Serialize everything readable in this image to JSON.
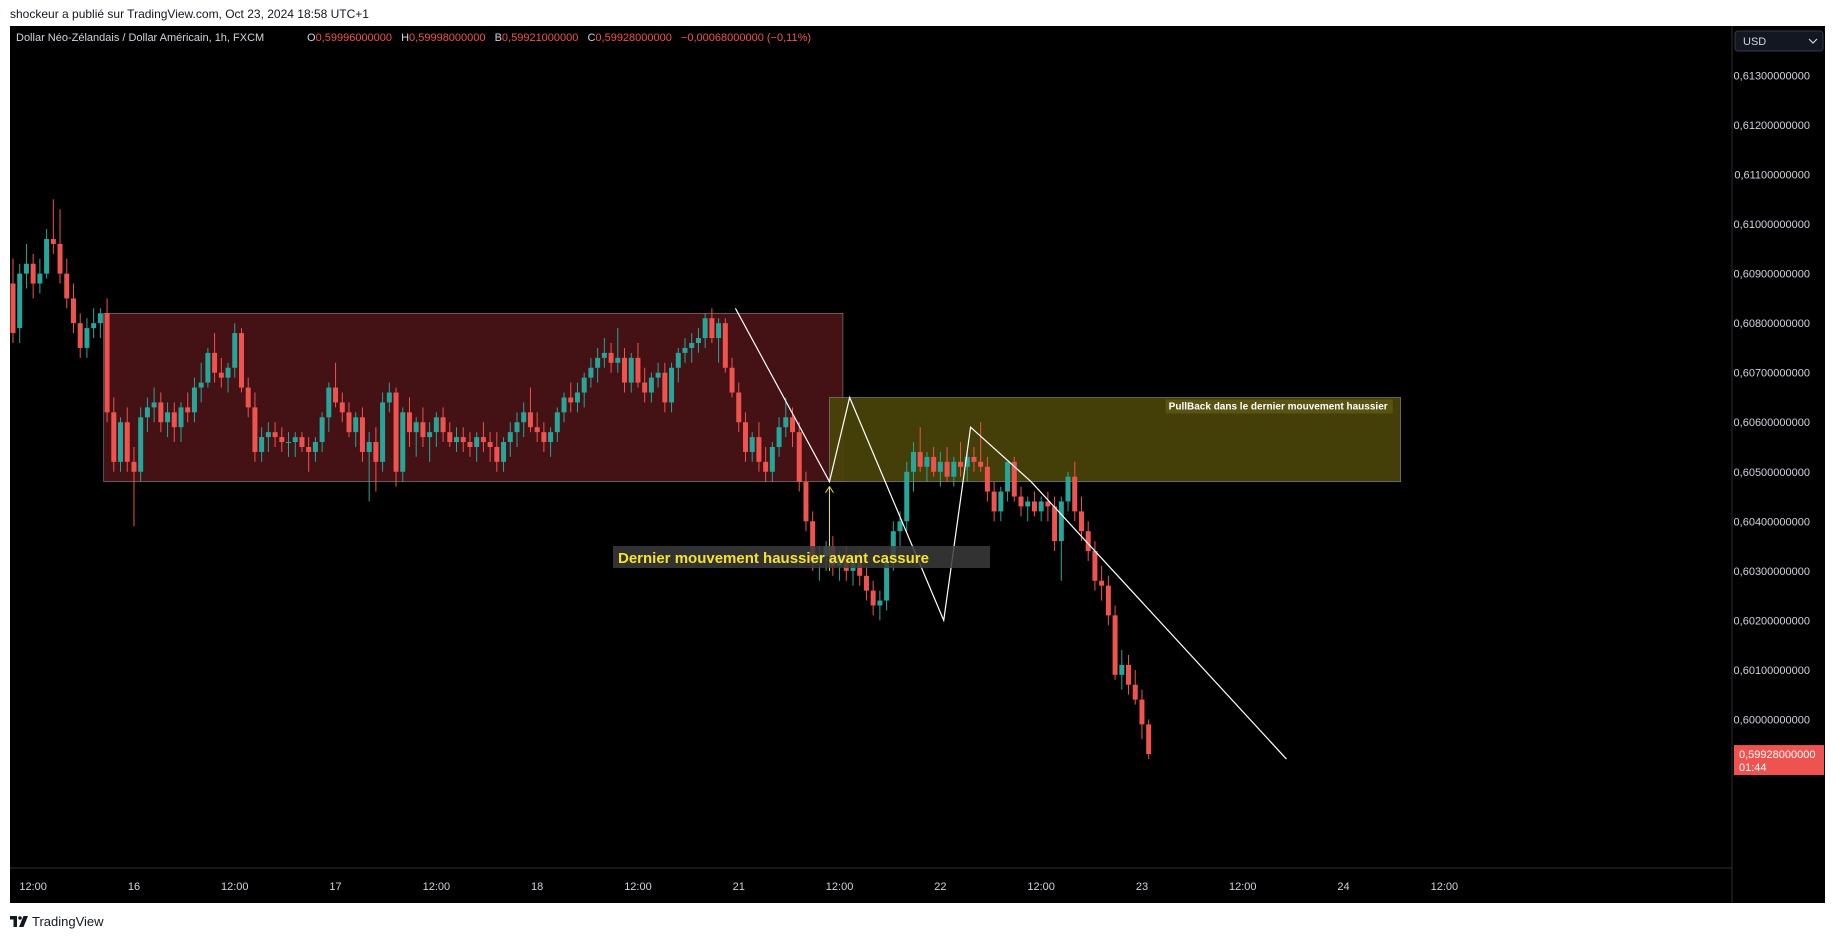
{
  "publish_line": "shockeur a publié sur TradingView.com, Oct 23, 2024 18:58 UTC+1",
  "brand": {
    "name": "TradingView",
    "icon": "tradingview-logo-icon"
  },
  "header": {
    "symbol": "Dollar Néo-Zélandais / Dollar Américain, 1h, FXCM",
    "o_label": "O",
    "o_value": "0,59996000000",
    "h_label": "H",
    "h_value": "0,59998000000",
    "b_label": "B",
    "b_value": "0,59921000000",
    "c_label": "C",
    "c_value": "0,59928000000",
    "change": "−0,00068000000 (−0,11%)"
  },
  "currency_button": "USD",
  "last_price": {
    "value": "0,59928000000",
    "countdown": "01:44",
    "price": 0.59928
  },
  "colors": {
    "up": "#26a69a",
    "down": "#ef5350",
    "range_box": "#4a1216",
    "pullback_box": "#4a4409",
    "annotation_text": "#f5e32e",
    "drawing": "#ffffff",
    "arrow": "#f5e32e"
  },
  "chart_data": {
    "type": "candlestick",
    "title": "Dollar Néo-Zélandais / Dollar Américain, 1h, FXCM",
    "y_range": [
      0.597,
      0.614
    ],
    "y_ticks": [
      {
        "v": 0.613,
        "label": "0,61300000000"
      },
      {
        "v": 0.612,
        "label": "0,61200000000"
      },
      {
        "v": 0.611,
        "label": "0,61100000000"
      },
      {
        "v": 0.61,
        "label": "0,61000000000"
      },
      {
        "v": 0.609,
        "label": "0,60900000000"
      },
      {
        "v": 0.608,
        "label": "0,60800000000"
      },
      {
        "v": 0.607,
        "label": "0,60700000000"
      },
      {
        "v": 0.606,
        "label": "0,60600000000"
      },
      {
        "v": 0.605,
        "label": "0,60500000000"
      },
      {
        "v": 0.604,
        "label": "0,60400000000"
      },
      {
        "v": 0.603,
        "label": "0,60300000000"
      },
      {
        "v": 0.602,
        "label": "0,60200000000"
      },
      {
        "v": 0.601,
        "label": "0,60100000000"
      },
      {
        "v": 0.6,
        "label": "0,60000000000"
      }
    ],
    "x_ticks": [
      {
        "i": 3,
        "label": "12:00"
      },
      {
        "i": 18,
        "label": "16"
      },
      {
        "i": 33,
        "label": "12:00"
      },
      {
        "i": 48,
        "label": "17"
      },
      {
        "i": 63,
        "label": "12:00"
      },
      {
        "i": 78,
        "label": "18"
      },
      {
        "i": 93,
        "label": "12:00"
      },
      {
        "i": 108,
        "label": "21"
      },
      {
        "i": 123,
        "label": "12:00"
      },
      {
        "i": 138,
        "label": "22"
      },
      {
        "i": 153,
        "label": "12:00"
      },
      {
        "i": 168,
        "label": "23"
      },
      {
        "i": 183,
        "label": "12:00"
      },
      {
        "i": 198,
        "label": "24"
      },
      {
        "i": 213,
        "label": "12:00"
      }
    ],
    "x_count": 216,
    "candles": [
      [
        0.6088,
        0.6093,
        0.6076,
        0.6078
      ],
      [
        0.6079,
        0.6092,
        0.6076,
        0.609
      ],
      [
        0.609,
        0.6096,
        0.6087,
        0.6092
      ],
      [
        0.6092,
        0.6094,
        0.6085,
        0.6088
      ],
      [
        0.6088,
        0.6093,
        0.6086,
        0.609
      ],
      [
        0.609,
        0.6099,
        0.6089,
        0.6097
      ],
      [
        0.6097,
        0.6105,
        0.6094,
        0.6096
      ],
      [
        0.6096,
        0.6103,
        0.6088,
        0.609
      ],
      [
        0.609,
        0.6093,
        0.6083,
        0.6085
      ],
      [
        0.6085,
        0.6088,
        0.6078,
        0.608
      ],
      [
        0.608,
        0.6082,
        0.6073,
        0.6075
      ],
      [
        0.6075,
        0.6081,
        0.6073,
        0.6079
      ],
      [
        0.6079,
        0.6083,
        0.6077,
        0.608
      ],
      [
        0.608,
        0.6083,
        0.6077,
        0.6082
      ],
      [
        0.6082,
        0.6085,
        0.606,
        0.6062
      ],
      [
        0.6062,
        0.6065,
        0.605,
        0.6052
      ],
      [
        0.6052,
        0.6061,
        0.605,
        0.606
      ],
      [
        0.606,
        0.6063,
        0.605,
        0.6052
      ],
      [
        0.6052,
        0.6055,
        0.6039,
        0.605
      ],
      [
        0.605,
        0.6063,
        0.6048,
        0.6061
      ],
      [
        0.6061,
        0.6065,
        0.6058,
        0.6063
      ],
      [
        0.6063,
        0.6067,
        0.606,
        0.6064
      ],
      [
        0.6064,
        0.6066,
        0.6058,
        0.606
      ],
      [
        0.606,
        0.6064,
        0.6057,
        0.6062
      ],
      [
        0.6062,
        0.6064,
        0.6056,
        0.6059
      ],
      [
        0.6059,
        0.6064,
        0.6056,
        0.6063
      ],
      [
        0.6063,
        0.6066,
        0.606,
        0.6062
      ],
      [
        0.6062,
        0.6069,
        0.606,
        0.6067
      ],
      [
        0.6067,
        0.6072,
        0.6064,
        0.6068
      ],
      [
        0.6068,
        0.6075,
        0.6067,
        0.6074
      ],
      [
        0.6074,
        0.6078,
        0.6068,
        0.607
      ],
      [
        0.607,
        0.6073,
        0.6067,
        0.6069
      ],
      [
        0.6069,
        0.6072,
        0.6066,
        0.6071
      ],
      [
        0.6071,
        0.608,
        0.6069,
        0.6078
      ],
      [
        0.6078,
        0.6079,
        0.6066,
        0.6067
      ],
      [
        0.6067,
        0.6069,
        0.6061,
        0.6063
      ],
      [
        0.6063,
        0.6066,
        0.6052,
        0.6054
      ],
      [
        0.6054,
        0.6059,
        0.6052,
        0.6057
      ],
      [
        0.6057,
        0.606,
        0.6054,
        0.6058
      ],
      [
        0.6058,
        0.606,
        0.6055,
        0.6057
      ],
      [
        0.6057,
        0.6059,
        0.6054,
        0.6056
      ],
      [
        0.6056,
        0.6058,
        0.6053,
        0.6056
      ],
      [
        0.6056,
        0.6058,
        0.6053,
        0.6057
      ],
      [
        0.6057,
        0.6058,
        0.6054,
        0.6055
      ],
      [
        0.6055,
        0.6057,
        0.605,
        0.6054
      ],
      [
        0.6054,
        0.6057,
        0.6052,
        0.6056
      ],
      [
        0.6056,
        0.6062,
        0.6054,
        0.6061
      ],
      [
        0.6061,
        0.6068,
        0.6058,
        0.6067
      ],
      [
        0.6067,
        0.6072,
        0.6063,
        0.6064
      ],
      [
        0.6064,
        0.6066,
        0.606,
        0.6062
      ],
      [
        0.6062,
        0.6064,
        0.6057,
        0.6058
      ],
      [
        0.6058,
        0.6062,
        0.6055,
        0.6061
      ],
      [
        0.6061,
        0.6063,
        0.6052,
        0.6054
      ],
      [
        0.6054,
        0.6058,
        0.6044,
        0.6056
      ],
      [
        0.6056,
        0.6059,
        0.6046,
        0.6052
      ],
      [
        0.6052,
        0.6066,
        0.605,
        0.6064
      ],
      [
        0.6064,
        0.6068,
        0.6062,
        0.6066
      ],
      [
        0.6066,
        0.6067,
        0.6047,
        0.605
      ],
      [
        0.605,
        0.6063,
        0.6048,
        0.6062
      ],
      [
        0.6062,
        0.6065,
        0.6055,
        0.6058
      ],
      [
        0.6058,
        0.6061,
        0.6053,
        0.606
      ],
      [
        0.606,
        0.6063,
        0.6055,
        0.6057
      ],
      [
        0.6057,
        0.606,
        0.6052,
        0.6058
      ],
      [
        0.6058,
        0.6062,
        0.6055,
        0.6061
      ],
      [
        0.6061,
        0.6063,
        0.6056,
        0.6058
      ],
      [
        0.6058,
        0.606,
        0.6055,
        0.6056
      ],
      [
        0.6056,
        0.6059,
        0.6054,
        0.6057
      ],
      [
        0.6057,
        0.6059,
        0.6054,
        0.6056
      ],
      [
        0.6056,
        0.6058,
        0.6053,
        0.6055
      ],
      [
        0.6055,
        0.6058,
        0.6052,
        0.6057
      ],
      [
        0.6057,
        0.606,
        0.6054,
        0.6056
      ],
      [
        0.6056,
        0.6058,
        0.6052,
        0.6055
      ],
      [
        0.6055,
        0.6058,
        0.605,
        0.6052
      ],
      [
        0.6052,
        0.6057,
        0.605,
        0.6056
      ],
      [
        0.6056,
        0.606,
        0.6053,
        0.6058
      ],
      [
        0.6058,
        0.6062,
        0.6055,
        0.606
      ],
      [
        0.606,
        0.6064,
        0.6057,
        0.6062
      ],
      [
        0.6062,
        0.6067,
        0.6058,
        0.6059
      ],
      [
        0.6059,
        0.6062,
        0.6056,
        0.6058
      ],
      [
        0.6058,
        0.606,
        0.6054,
        0.6056
      ],
      [
        0.6056,
        0.6059,
        0.6053,
        0.6058
      ],
      [
        0.6058,
        0.6063,
        0.6056,
        0.6062
      ],
      [
        0.6062,
        0.6066,
        0.606,
        0.6065
      ],
      [
        0.6065,
        0.6068,
        0.6062,
        0.6064
      ],
      [
        0.6064,
        0.6068,
        0.6062,
        0.6066
      ],
      [
        0.6066,
        0.607,
        0.6063,
        0.6069
      ],
      [
        0.6069,
        0.6073,
        0.6067,
        0.6071
      ],
      [
        0.6071,
        0.6075,
        0.6068,
        0.6073
      ],
      [
        0.6073,
        0.6077,
        0.6071,
        0.6074
      ],
      [
        0.6074,
        0.6076,
        0.607,
        0.6072
      ],
      [
        0.6072,
        0.6079,
        0.607,
        0.6073
      ],
      [
        0.6073,
        0.6075,
        0.6066,
        0.6068
      ],
      [
        0.6068,
        0.6074,
        0.6066,
        0.6073
      ],
      [
        0.6073,
        0.6076,
        0.6067,
        0.6068
      ],
      [
        0.6068,
        0.6071,
        0.6064,
        0.6066
      ],
      [
        0.6066,
        0.607,
        0.6064,
        0.6069
      ],
      [
        0.6069,
        0.6072,
        0.6067,
        0.607
      ],
      [
        0.607,
        0.6072,
        0.6062,
        0.6064
      ],
      [
        0.6064,
        0.6072,
        0.6062,
        0.6071
      ],
      [
        0.6071,
        0.6075,
        0.6068,
        0.6074
      ],
      [
        0.6074,
        0.6077,
        0.6072,
        0.6075
      ],
      [
        0.6075,
        0.6078,
        0.6072,
        0.6076
      ],
      [
        0.6076,
        0.6079,
        0.6074,
        0.6077
      ],
      [
        0.6077,
        0.6082,
        0.6075,
        0.6081
      ],
      [
        0.6081,
        0.6083,
        0.6076,
        0.6077
      ],
      [
        0.6077,
        0.6081,
        0.6072,
        0.608
      ],
      [
        0.608,
        0.6081,
        0.607,
        0.6071
      ],
      [
        0.6071,
        0.6073,
        0.6065,
        0.6066
      ],
      [
        0.6066,
        0.6068,
        0.6058,
        0.606
      ],
      [
        0.606,
        0.6062,
        0.6052,
        0.6054
      ],
      [
        0.6054,
        0.6058,
        0.6052,
        0.6057
      ],
      [
        0.6057,
        0.606,
        0.605,
        0.6052
      ],
      [
        0.6052,
        0.6055,
        0.6048,
        0.605
      ],
      [
        0.605,
        0.6056,
        0.6048,
        0.6055
      ],
      [
        0.6055,
        0.6061,
        0.6053,
        0.6059
      ],
      [
        0.6059,
        0.6065,
        0.6057,
        0.6061
      ],
      [
        0.6061,
        0.6063,
        0.6055,
        0.6058
      ],
      [
        0.6058,
        0.606,
        0.6046,
        0.6048
      ],
      [
        0.6048,
        0.605,
        0.6038,
        0.604
      ],
      [
        0.604,
        0.6042,
        0.603,
        0.6032
      ],
      [
        0.6032,
        0.6035,
        0.6028,
        0.6033
      ],
      [
        0.6033,
        0.6036,
        0.603,
        0.6035
      ],
      [
        0.6035,
        0.6037,
        0.6029,
        0.6031
      ],
      [
        0.6031,
        0.6034,
        0.6028,
        0.6033
      ],
      [
        0.6033,
        0.6035,
        0.6028,
        0.603
      ],
      [
        0.603,
        0.6033,
        0.6027,
        0.6032
      ],
      [
        0.6032,
        0.6034,
        0.6027,
        0.6029
      ],
      [
        0.6029,
        0.6031,
        0.6024,
        0.6026
      ],
      [
        0.6026,
        0.6028,
        0.6021,
        0.6023
      ],
      [
        0.6023,
        0.6026,
        0.602,
        0.6024
      ],
      [
        0.6024,
        0.6033,
        0.6022,
        0.6032
      ],
      [
        0.6032,
        0.604,
        0.603,
        0.6038
      ],
      [
        0.6038,
        0.6042,
        0.6035,
        0.604
      ],
      [
        0.604,
        0.6052,
        0.6038,
        0.605
      ],
      [
        0.605,
        0.6056,
        0.6046,
        0.6054
      ],
      [
        0.6054,
        0.6059,
        0.605,
        0.6051
      ],
      [
        0.6051,
        0.6054,
        0.6048,
        0.6053
      ],
      [
        0.6053,
        0.6055,
        0.6049,
        0.605
      ],
      [
        0.605,
        0.6054,
        0.6047,
        0.6052
      ],
      [
        0.6052,
        0.6055,
        0.6048,
        0.6049
      ],
      [
        0.6049,
        0.6053,
        0.6047,
        0.6052
      ],
      [
        0.6052,
        0.6056,
        0.6049,
        0.6051
      ],
      [
        0.6051,
        0.6054,
        0.6048,
        0.6053
      ],
      [
        0.6053,
        0.6055,
        0.605,
        0.6052
      ],
      [
        0.6052,
        0.606,
        0.605,
        0.6051
      ],
      [
        0.6051,
        0.6053,
        0.6044,
        0.6046
      ],
      [
        0.6046,
        0.6048,
        0.604,
        0.6042
      ],
      [
        0.6042,
        0.6047,
        0.604,
        0.6046
      ],
      [
        0.6046,
        0.6052,
        0.6044,
        0.6052
      ],
      [
        0.6052,
        0.6053,
        0.6044,
        0.6045
      ],
      [
        0.6045,
        0.6047,
        0.6041,
        0.6043
      ],
      [
        0.6043,
        0.6045,
        0.604,
        0.6044
      ],
      [
        0.6044,
        0.6046,
        0.6041,
        0.6042
      ],
      [
        0.6042,
        0.6045,
        0.604,
        0.6044
      ],
      [
        0.6044,
        0.6046,
        0.604,
        0.6043
      ],
      [
        0.6043,
        0.6045,
        0.6034,
        0.6036
      ],
      [
        0.6036,
        0.6045,
        0.6028,
        0.6044
      ],
      [
        0.6044,
        0.605,
        0.6042,
        0.6049
      ],
      [
        0.6049,
        0.6052,
        0.604,
        0.6042
      ],
      [
        0.6042,
        0.6045,
        0.6036,
        0.6038
      ],
      [
        0.6038,
        0.604,
        0.6032,
        0.6034
      ],
      [
        0.6034,
        0.6036,
        0.6026,
        0.6028
      ],
      [
        0.6028,
        0.6031,
        0.6024,
        0.6027
      ],
      [
        0.6027,
        0.6029,
        0.6019,
        0.6021
      ],
      [
        0.6021,
        0.6023,
        0.6008,
        0.6009
      ],
      [
        0.6009,
        0.6014,
        0.6006,
        0.6011
      ],
      [
        0.6011,
        0.6013,
        0.6005,
        0.6007
      ],
      [
        0.6007,
        0.601,
        0.6003,
        0.6004
      ],
      [
        0.6004,
        0.6006,
        0.5996,
        0.5999
      ],
      [
        0.5999,
        0.6,
        0.5992,
        0.5993
      ]
    ],
    "boxes": [
      {
        "name": "range-box",
        "i0": 13.5,
        "i1": 123.5,
        "top": 0.6082,
        "bottom": 0.6048,
        "color": "#4a1216"
      },
      {
        "name": "pullback-box",
        "i0": 121.5,
        "i1": 206.5,
        "top": 0.6065,
        "bottom": 0.6048,
        "color": "#4a4409",
        "label": "PullBack dans le dernier mouvement haussier"
      }
    ],
    "lines": [
      {
        "name": "drop-line-1",
        "pts": [
          [
            107.5,
            0.6083
          ],
          [
            121.5,
            0.6048
          ],
          [
            124.5,
            0.6065
          ],
          [
            138.5,
            0.602
          ],
          [
            142.5,
            0.6059
          ],
          [
            151.5,
            0.6048
          ],
          [
            189.5,
            0.5992
          ]
        ]
      }
    ],
    "annotation": {
      "text": "Dernier mouvement haussier avant cassure",
      "arrow_i": 121.5,
      "arrow_from": 0.603,
      "arrow_to": 0.6047
    }
  }
}
